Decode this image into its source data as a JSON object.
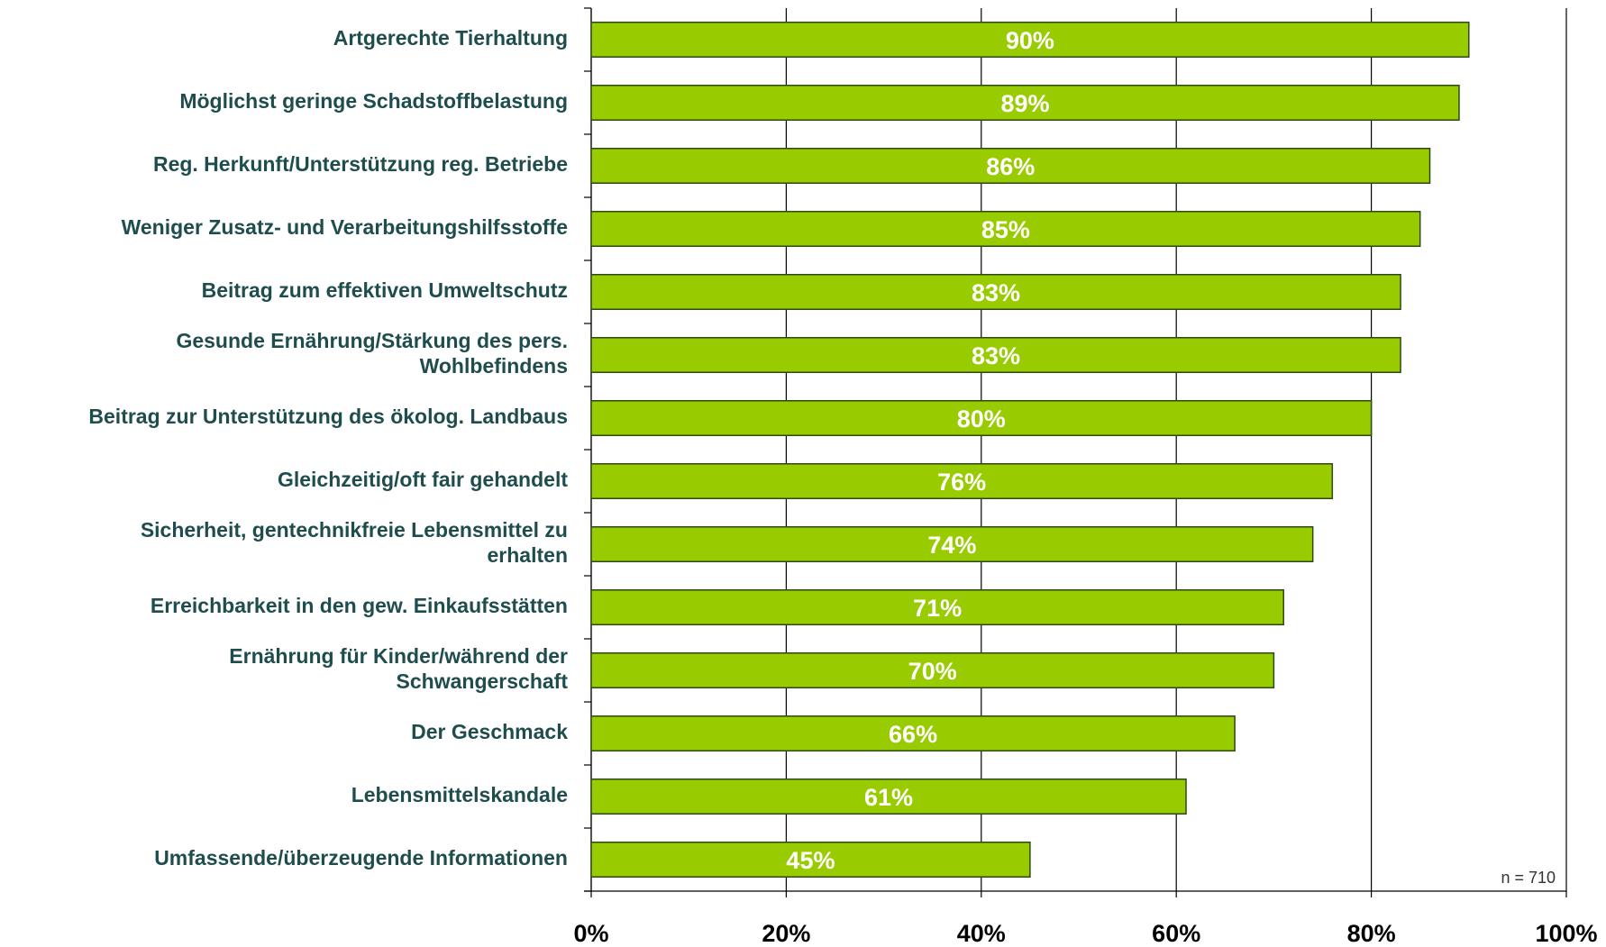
{
  "chart_data": {
    "type": "barh",
    "categories": [
      "Artgerechte Tierhaltung",
      "Möglichst geringe Schadstoffbelastung",
      "Reg. Herkunft/Unterstützung reg. Betriebe",
      "Weniger Zusatz- und Verarbeitungshilfsstoffe",
      "Beitrag zum effektiven Umweltschutz",
      "Gesunde Ernährung/Stärkung des pers.\nWohlbefindens",
      "Beitrag zur Unterstützung des ökolog. Landbaus",
      "Gleichzeitig/oft fair gehandelt",
      "Sicherheit, gentechnikfreie Lebensmittel zu\nerhalten",
      "Erreichbarkeit in den gew. Einkaufsstätten",
      "Ernährung für Kinder/während der\nSchwangerschaft",
      "Der Geschmack",
      "Lebensmittelskandale",
      "Umfassende/überzeugende Informationen"
    ],
    "values": [
      90,
      89,
      86,
      85,
      83,
      83,
      80,
      76,
      74,
      71,
      70,
      66,
      61,
      45
    ],
    "value_labels": [
      "90%",
      "89%",
      "86%",
      "85%",
      "83%",
      "83%",
      "80%",
      "76%",
      "74%",
      "71%",
      "70%",
      "66%",
      "61%",
      "45%"
    ],
    "color": "#99cc00",
    "xlim": [
      0,
      100
    ],
    "xticks": [
      {
        "value": 0,
        "label": "0%"
      },
      {
        "value": 20,
        "label": "20%"
      },
      {
        "value": 40,
        "label": "40%"
      },
      {
        "value": 60,
        "label": "60%"
      },
      {
        "value": 80,
        "label": "80%"
      },
      {
        "value": 100,
        "label": "100%"
      }
    ],
    "grid": true,
    "annotation": "n = 710"
  }
}
